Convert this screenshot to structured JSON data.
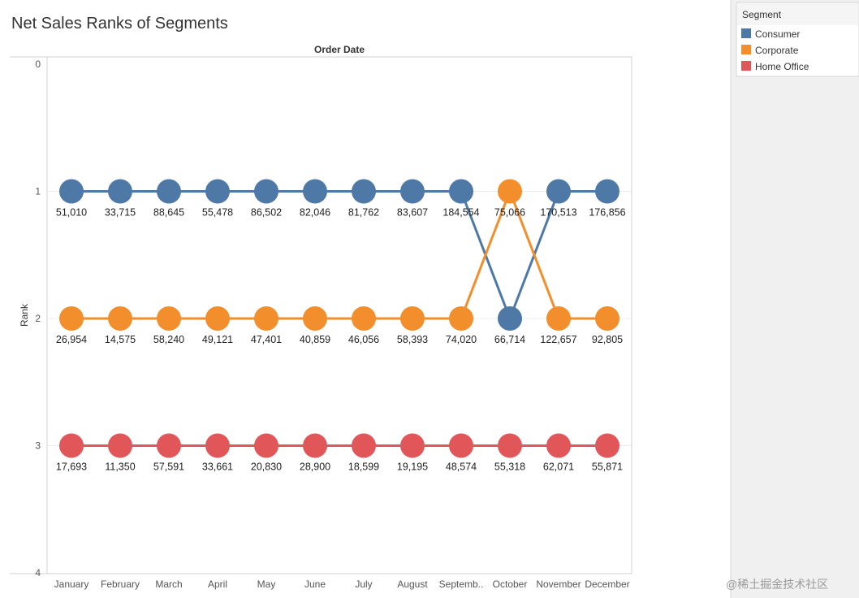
{
  "chart_data": {
    "type": "line",
    "title": "Net Sales Ranks of Segments",
    "column_header": "Order Date",
    "ylabel": "Rank",
    "ylim": [
      0,
      4
    ],
    "y_ticks": [
      0,
      1,
      2,
      3,
      4
    ],
    "y_reversed": true,
    "grid": true,
    "legend": {
      "title": "Segment",
      "placement": "right",
      "items": [
        "Consumer",
        "Corporate",
        "Home Office"
      ]
    },
    "categories": [
      "January",
      "February",
      "March",
      "April",
      "May",
      "June",
      "July",
      "August",
      "Septemb..",
      "October",
      "November",
      "December"
    ],
    "series": [
      {
        "name": "Consumer",
        "color": "#4e79a7",
        "rank": [
          1,
          1,
          1,
          1,
          1,
          1,
          1,
          1,
          1,
          2,
          1,
          1
        ],
        "labels": [
          "51,010",
          "33,715",
          "88,645",
          "55,478",
          "86,502",
          "82,046",
          "81,762",
          "83,607",
          "184,554",
          "66,714",
          "170,513",
          "176,856"
        ]
      },
      {
        "name": "Corporate",
        "color": "#f28e2b",
        "rank": [
          2,
          2,
          2,
          2,
          2,
          2,
          2,
          2,
          2,
          1,
          2,
          2
        ],
        "labels": [
          "26,954",
          "14,575",
          "58,240",
          "49,121",
          "47,401",
          "40,859",
          "46,056",
          "58,393",
          "74,020",
          "75,066",
          "122,657",
          "92,805"
        ]
      },
      {
        "name": "Home Office",
        "color": "#e15759",
        "rank": [
          3,
          3,
          3,
          3,
          3,
          3,
          3,
          3,
          3,
          3,
          3,
          3
        ],
        "labels": [
          "17,693",
          "11,350",
          "57,591",
          "33,661",
          "20,830",
          "28,900",
          "18,599",
          "19,195",
          "48,574",
          "55,318",
          "62,071",
          "55,871"
        ]
      }
    ]
  },
  "watermark": "@稀土掘金技术社区"
}
